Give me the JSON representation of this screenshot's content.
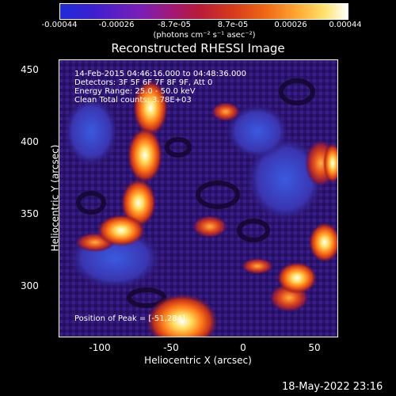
{
  "colorbar": {
    "ticks": [
      "-0.00044",
      "-0.00026",
      "-8.7e-05",
      "8.7e-05",
      "0.00026",
      "0.00044"
    ],
    "unit": "(photons cm⁻² s⁻¹ asec⁻²)"
  },
  "title": "Reconstructed RHESSI Image",
  "annotations": {
    "line1": "14-Feb-2015 04:46:16.000 to 04:48:36.000",
    "line2": "Detectors: 3F 5F 6F 7F 8F 9F, Att 0",
    "line3": "Energy Range: 25.0 - 50.0 keV",
    "line4": "Clean     Total counts: 3.78E+03",
    "peak": "Position of Peak = [-51,284]"
  },
  "axes": {
    "xlabel": "Heliocentric X (arcsec)",
    "ylabel": "Heliocentric Y (arcsec)",
    "xticks": [
      "-100",
      "-50",
      "0",
      "50"
    ],
    "yticks": [
      "450",
      "400",
      "350",
      "300"
    ]
  },
  "footer": "18-May-2022 23:16"
}
